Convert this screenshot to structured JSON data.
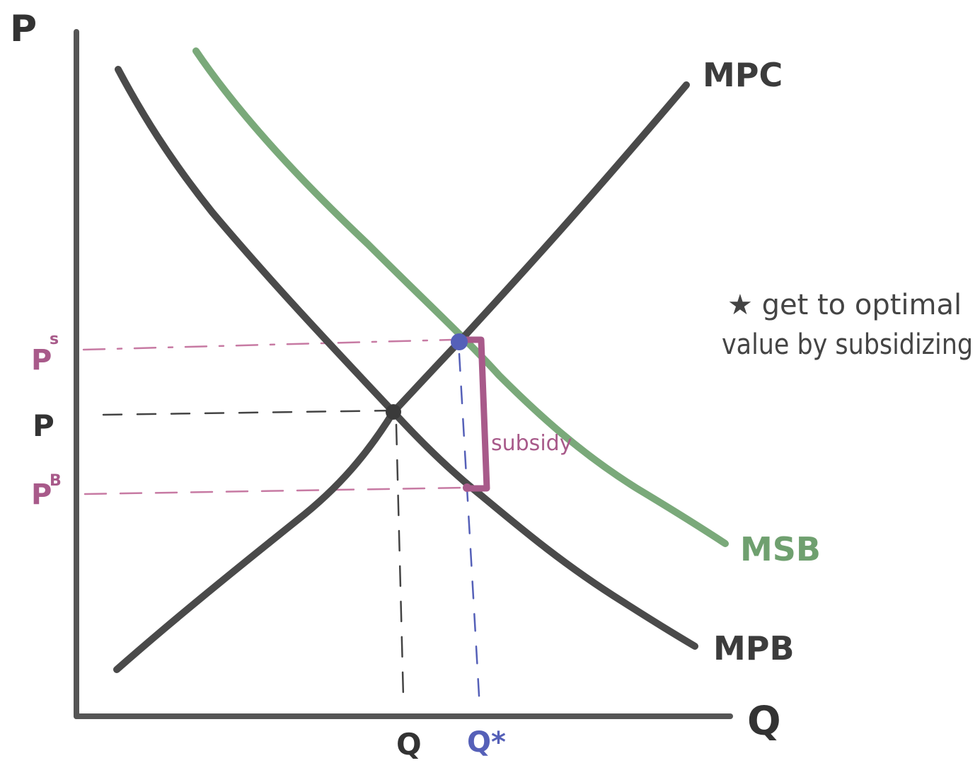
{
  "axes": {
    "y_label": "P",
    "x_label": "Q"
  },
  "curves": {
    "mpc": {
      "label": "MPC",
      "color": "#4a4a4a"
    },
    "mpb": {
      "label": "MPB",
      "color": "#4a4a4a"
    },
    "msb": {
      "label": "MSB",
      "color": "#7aa97a"
    }
  },
  "price_labels": {
    "ps": {
      "main": "P",
      "sup": "s",
      "color": "#a85a8a"
    },
    "p": {
      "main": "P",
      "color": "#444444"
    },
    "pb": {
      "main": "P",
      "sup": "B",
      "color": "#a85a8a"
    }
  },
  "quantity_labels": {
    "q": {
      "text": "Q",
      "color": "#444444"
    },
    "q_star": {
      "text": "Q*",
      "color": "#5560b8"
    }
  },
  "subsidy": {
    "label": "subsidy",
    "color": "#a85a8a"
  },
  "note": {
    "line1": "★ get to optimal",
    "line2": "value by subsidizing"
  },
  "colors": {
    "equilibrium_point": "#3a3a3a",
    "optimal_point": "#5560b8",
    "guide_dark": "#444444",
    "guide_pink": "#c77aa3",
    "guide_blue": "#5560b8"
  }
}
